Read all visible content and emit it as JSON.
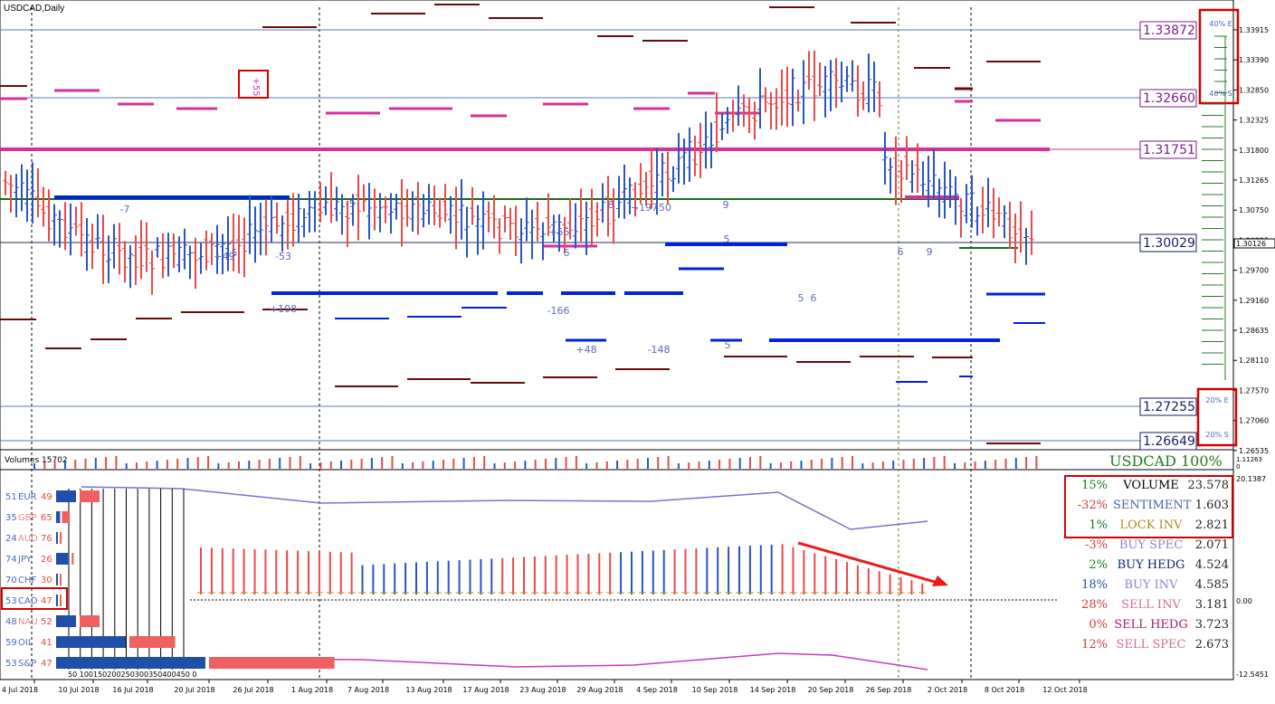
{
  "chart": {
    "symbol_title": "USDCAD,Daily",
    "volume_label": "Volumes 15702",
    "pair_strength": "USDCAD 100%"
  },
  "price_axis": [
    "1.33915",
    "1.33390",
    "1.32850",
    "1.32325",
    "1.31800",
    "1.31265",
    "1.30750",
    "1.30225",
    "1.29700",
    "1.29160",
    "1.28635",
    "1.28110",
    "1.27570",
    "1.27060",
    "1.26535"
  ],
  "current_price": "1.30126",
  "price_levels": [
    {
      "price": "1.33872",
      "color": "#7a1f8a"
    },
    {
      "price": "1.32660",
      "color": "#7a1f8a"
    },
    {
      "price": "1.31751",
      "color": "#7a1f8a"
    },
    {
      "price": "1.30029",
      "color": "#1a1a6a"
    },
    {
      "price": "1.27255",
      "color": "#1a1a6a"
    },
    {
      "price": "1.26649",
      "color": "#1a1a6a"
    }
  ],
  "zone_labels": {
    "top_upper": "40% E",
    "top_lower": "40% S",
    "bottom_upper": "20% E",
    "bottom_lower": "20% S"
  },
  "volume_axis": "1.11263",
  "volume_zero": "0",
  "indicator_axis": {
    "top": "20.1387",
    "zero": "0.00",
    "bottom": "-12.5451"
  },
  "dates": [
    "4 Jul 2018",
    "10 Jul 2018",
    "16 Jul 2018",
    "20 Jul 2018",
    "26 Jul 2018",
    "1 Aug 2018",
    "7 Aug 2018",
    "13 Aug 2018",
    "17 Aug 2018",
    "23 Aug 2018",
    "29 Aug 2018",
    "4 Sep 2018",
    "10 Sep 2018",
    "14 Sep 2018",
    "20 Sep 2018",
    "26 Sep 2018",
    "2 Oct 2018",
    "8 Oct 2018",
    "12 Oct 2018"
  ],
  "currencies": [
    {
      "left": "51",
      "name": "EUR",
      "right": "49",
      "blue": 1.0,
      "red": 1.0
    },
    {
      "left": "35",
      "name": "GBP",
      "right": "65",
      "blue": 0.2,
      "red": 0.4
    },
    {
      "left": "24",
      "name": "AUD",
      "right": "76",
      "blue": 0.0,
      "red": 0.1
    },
    {
      "left": "74",
      "name": "JPY",
      "right": "26",
      "blue": 0.6,
      "red": 0.1
    },
    {
      "left": "70",
      "name": "CHF",
      "right": "30",
      "blue": 0.0,
      "red": 0.0
    },
    {
      "left": "53",
      "name": "CAD",
      "right": "47",
      "blue": 0.0,
      "red": 0.0
    },
    {
      "left": "48",
      "name": "NAU",
      "right": "52",
      "blue": 1.0,
      "red": 1.0
    },
    {
      "left": "59",
      "name": "OIL",
      "right": "41",
      "blue": 3.5,
      "red": 2.3
    },
    {
      "left": "53",
      "name": "S&P",
      "right": "47",
      "blue": 7.5,
      "red": 6.3
    }
  ],
  "scale_label": "50 100150200250300350400450 0",
  "stats": [
    {
      "pct": "15%",
      "label": "VOLUME",
      "value": "23.578",
      "pct_color": "#1e7a1e",
      "label_color": "#000000"
    },
    {
      "pct": "-32%",
      "label": "SENTIMENT",
      "value": "1.603",
      "pct_color": "#d43c3c",
      "label_color": "#4a63a8"
    },
    {
      "pct": "1%",
      "label": "LOCK INV",
      "value": "2.821",
      "pct_color": "#1e7a1e",
      "label_color": "#a88a20"
    },
    {
      "pct": "-3%",
      "label": "BUY SPEC",
      "value": "2.071",
      "pct_color": "#d43c3c",
      "label_color": "#8a85d6"
    },
    {
      "pct": "2%",
      "label": "BUY HEDG",
      "value": "4.524",
      "pct_color": "#1e7a1e",
      "label_color": "#0b1f6e"
    },
    {
      "pct": "18%",
      "label": "BUY INV",
      "value": "4.585",
      "pct_color": "#1e4fa8",
      "label_color": "#8a85d6"
    },
    {
      "pct": "28%",
      "label": "SELL INV",
      "value": "3.181",
      "pct_color": "#d43c3c",
      "label_color": "#d46a9a"
    },
    {
      "pct": "0%",
      "label": "SELL HEDG",
      "value": "3.723",
      "pct_color": "#d43c3c",
      "label_color": "#a01f6a"
    },
    {
      "pct": "12%",
      "label": "SELL SPEC",
      "value": "2.673",
      "pct_color": "#d43c3c",
      "label_color": "#d46a9a"
    }
  ],
  "annotations": {
    "marker_top": "+55",
    "bar_labels": [
      "5",
      "+49",
      "-53",
      "-7",
      "+108",
      "-5",
      "+55",
      "6",
      "-166",
      "+48",
      "8",
      "+197",
      "-50",
      "-148",
      "9",
      "5",
      "5",
      "6",
      "6",
      "9",
      "5"
    ]
  },
  "colors": {
    "bull": "#2a55c0",
    "bear": "#e84a4a",
    "level_blue": "#0022dd",
    "level_magenta": "#d4309a",
    "level_maroon": "#6a0a0a",
    "level_green": "#1a6a1a",
    "highlight": "#d40000"
  }
}
